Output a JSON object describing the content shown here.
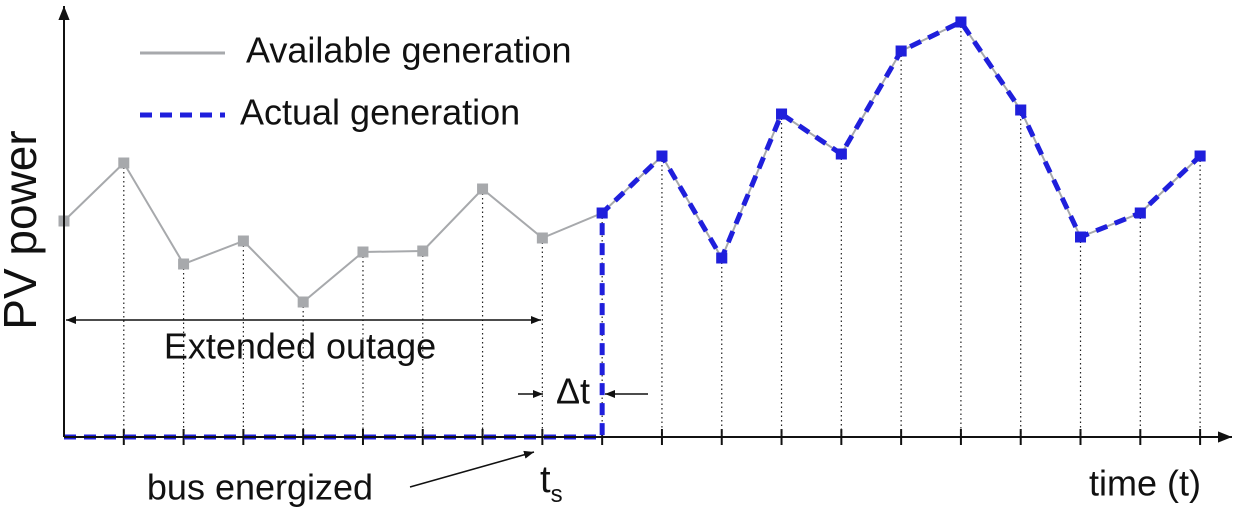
{
  "chart_data": {
    "type": "line",
    "y_label": "PV power",
    "x_label": "time (t)",
    "xlim": [
      0,
      19.5
    ],
    "ylim": [
      0,
      430
    ],
    "xticks": [
      1,
      2,
      3,
      4,
      5,
      6,
      7,
      8,
      9,
      10,
      11,
      12,
      13,
      14,
      15,
      16,
      17,
      18,
      19
    ],
    "xtick_labels": false,
    "series": [
      {
        "name": "Available generation",
        "color": "#a7a9ac",
        "dashed": false,
        "x": [
          0,
          1,
          2,
          3,
          4,
          5,
          6,
          7,
          8,
          9,
          10,
          11,
          12,
          13,
          14,
          15,
          16,
          17,
          18,
          19
        ],
        "values": [
          216,
          274,
          173,
          196,
          135,
          185,
          186,
          248,
          199,
          224,
          281,
          179,
          323,
          283,
          386,
          415,
          327,
          200,
          224,
          281
        ]
      },
      {
        "name": "Actual generation",
        "color": "#1f1fdc",
        "dashed": true,
        "x": [
          0,
          1,
          2,
          3,
          4,
          5,
          6,
          7,
          8,
          9,
          9,
          10,
          11,
          12,
          13,
          14,
          15,
          16,
          17,
          18,
          19
        ],
        "values": [
          0,
          0,
          0,
          0,
          0,
          0,
          0,
          0,
          0,
          0,
          224,
          281,
          179,
          323,
          283,
          386,
          415,
          327,
          200,
          224,
          281
        ]
      }
    ],
    "annotations": {
      "outage": "Extended outage",
      "delta": "Δt",
      "ts": {
        "text": "t",
        "subscript": "s"
      },
      "energized": "bus energized"
    }
  }
}
